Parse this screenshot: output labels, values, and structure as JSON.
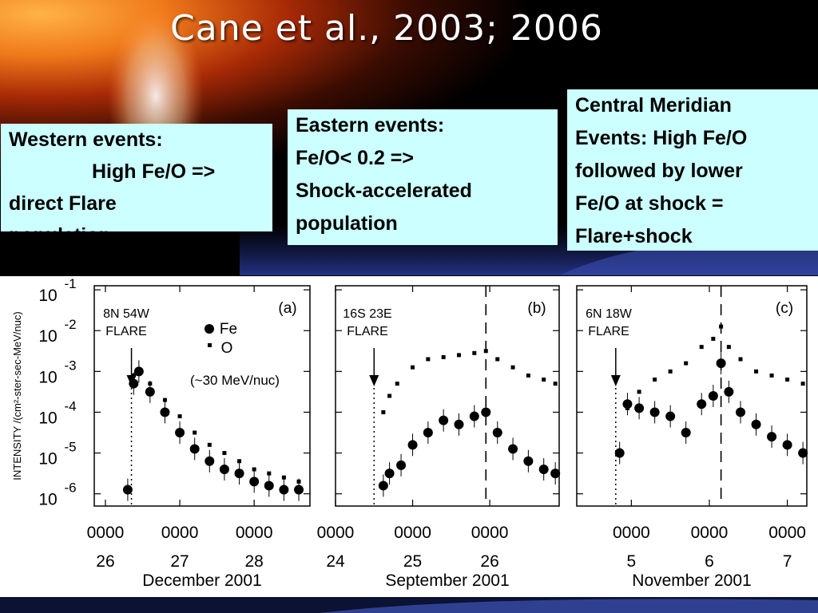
{
  "slide": {
    "title": "Cane et al., 2003; 2006",
    "boxes": {
      "west": [
        "Western events:",
        "High Fe/O =>",
        "direct Flare",
        "population"
      ],
      "east": [
        "Eastern events:",
        "Fe/O< 0.2 =>",
        "Shock-accelerated",
        "population"
      ],
      "central": [
        "Central Meridian",
        "Events: High Fe/O",
        "followed by lower",
        "Fe/O at shock =",
        "Flare+shock"
      ]
    }
  },
  "chart_data": {
    "type": "scatter",
    "ylabel": "INTENSITY /(cm²-ster-sec-MeV/nuc)",
    "ylim": [
      "1e-6",
      "1e-1"
    ],
    "yscale": "log",
    "y_ticks": [
      {
        "base": "10",
        "exp": "-1"
      },
      {
        "base": "10",
        "exp": "-2"
      },
      {
        "base": "10",
        "exp": "-3"
      },
      {
        "base": "10",
        "exp": "-4"
      },
      {
        "base": "10",
        "exp": "-5"
      },
      {
        "base": "10",
        "exp": "-6"
      }
    ],
    "legend": {
      "fe": "Fe",
      "o": "O",
      "note": "(~30 MeV/nuc)"
    },
    "panels": [
      {
        "id": "(a)",
        "flare": "8N 54W",
        "flare_word": "FLARE",
        "month": "December 2001",
        "tick_days": [
          "26",
          "27",
          "28"
        ],
        "tick_times": [
          "0000",
          "0000",
          "0000"
        ],
        "x_start_day": 25.85,
        "x_end_day": 28.75,
        "flare_day": 26.35,
        "shock_day": null,
        "o_series": [
          [
            26.33,
            -5.9
          ],
          [
            26.38,
            -3.1
          ],
          [
            26.45,
            -3.0
          ],
          [
            26.6,
            -3.3
          ],
          [
            26.8,
            -3.7
          ],
          [
            27.0,
            -4.1
          ],
          [
            27.2,
            -4.5
          ],
          [
            27.4,
            -4.8
          ],
          [
            27.6,
            -5.0
          ],
          [
            27.8,
            -5.2
          ],
          [
            28.0,
            -5.4
          ],
          [
            28.2,
            -5.5
          ],
          [
            28.4,
            -5.6
          ],
          [
            28.6,
            -5.7
          ]
        ],
        "fe_series": [
          [
            26.3,
            -5.9
          ],
          [
            26.38,
            -3.3
          ],
          [
            26.45,
            -3.0
          ],
          [
            26.6,
            -3.5
          ],
          [
            26.8,
            -4.0
          ],
          [
            27.0,
            -4.5
          ],
          [
            27.2,
            -4.9
          ],
          [
            27.4,
            -5.2
          ],
          [
            27.6,
            -5.4
          ],
          [
            27.8,
            -5.5
          ],
          [
            28.0,
            -5.7
          ],
          [
            28.2,
            -5.8
          ],
          [
            28.4,
            -5.9
          ],
          [
            28.6,
            -5.9
          ]
        ]
      },
      {
        "id": "(b)",
        "flare": "16S 23E",
        "flare_word": "FLARE",
        "month": "September 2001",
        "tick_days": [
          "24",
          "25",
          "26"
        ],
        "tick_times": [
          "0000",
          "0000",
          "0000"
        ],
        "x_start_day": 24.0,
        "x_end_day": 26.9,
        "flare_day": 24.5,
        "shock_day": 25.95,
        "o_series": [
          [
            24.62,
            -4.0
          ],
          [
            24.7,
            -3.6
          ],
          [
            24.8,
            -3.3
          ],
          [
            25.0,
            -2.9
          ],
          [
            25.2,
            -2.7
          ],
          [
            25.4,
            -2.65
          ],
          [
            25.6,
            -2.6
          ],
          [
            25.8,
            -2.55
          ],
          [
            25.95,
            -2.5
          ],
          [
            26.1,
            -2.7
          ],
          [
            26.3,
            -2.9
          ],
          [
            26.5,
            -3.1
          ],
          [
            26.7,
            -3.2
          ],
          [
            26.85,
            -3.3
          ]
        ],
        "fe_series": [
          [
            24.62,
            -5.8
          ],
          [
            24.7,
            -5.5
          ],
          [
            24.85,
            -5.3
          ],
          [
            25.0,
            -4.8
          ],
          [
            25.2,
            -4.5
          ],
          [
            25.4,
            -4.2
          ],
          [
            25.6,
            -4.3
          ],
          [
            25.8,
            -4.1
          ],
          [
            25.95,
            -4.0
          ],
          [
            26.1,
            -4.5
          ],
          [
            26.3,
            -4.9
          ],
          [
            26.5,
            -5.2
          ],
          [
            26.7,
            -5.4
          ],
          [
            26.85,
            -5.5
          ]
        ]
      },
      {
        "id": "(c)",
        "flare": "6N 18W",
        "flare_word": "FLARE",
        "month": "November 2001",
        "tick_days": [
          "5",
          "6",
          "7"
        ],
        "tick_times": [
          "0000",
          "0000",
          "0000"
        ],
        "x_start_day": 4.3,
        "x_end_day": 7.25,
        "flare_day": 4.8,
        "shock_day": 6.15,
        "o_series": [
          [
            4.95,
            -3.9
          ],
          [
            5.1,
            -3.5
          ],
          [
            5.3,
            -3.2
          ],
          [
            5.5,
            -3.0
          ],
          [
            5.7,
            -2.8
          ],
          [
            5.9,
            -2.4
          ],
          [
            6.05,
            -2.2
          ],
          [
            6.15,
            -1.9
          ],
          [
            6.25,
            -2.4
          ],
          [
            6.4,
            -2.7
          ],
          [
            6.6,
            -3.0
          ],
          [
            6.8,
            -3.1
          ],
          [
            7.0,
            -3.2
          ],
          [
            7.2,
            -3.3
          ]
        ],
        "fe_series": [
          [
            4.85,
            -5.0
          ],
          [
            4.95,
            -3.8
          ],
          [
            5.1,
            -3.9
          ],
          [
            5.3,
            -4.0
          ],
          [
            5.5,
            -4.1
          ],
          [
            5.7,
            -4.5
          ],
          [
            5.9,
            -3.8
          ],
          [
            6.05,
            -3.6
          ],
          [
            6.15,
            -2.8
          ],
          [
            6.25,
            -3.5
          ],
          [
            6.4,
            -4.0
          ],
          [
            6.6,
            -4.3
          ],
          [
            6.8,
            -4.6
          ],
          [
            7.0,
            -4.8
          ],
          [
            7.2,
            -5.0
          ]
        ]
      }
    ]
  }
}
